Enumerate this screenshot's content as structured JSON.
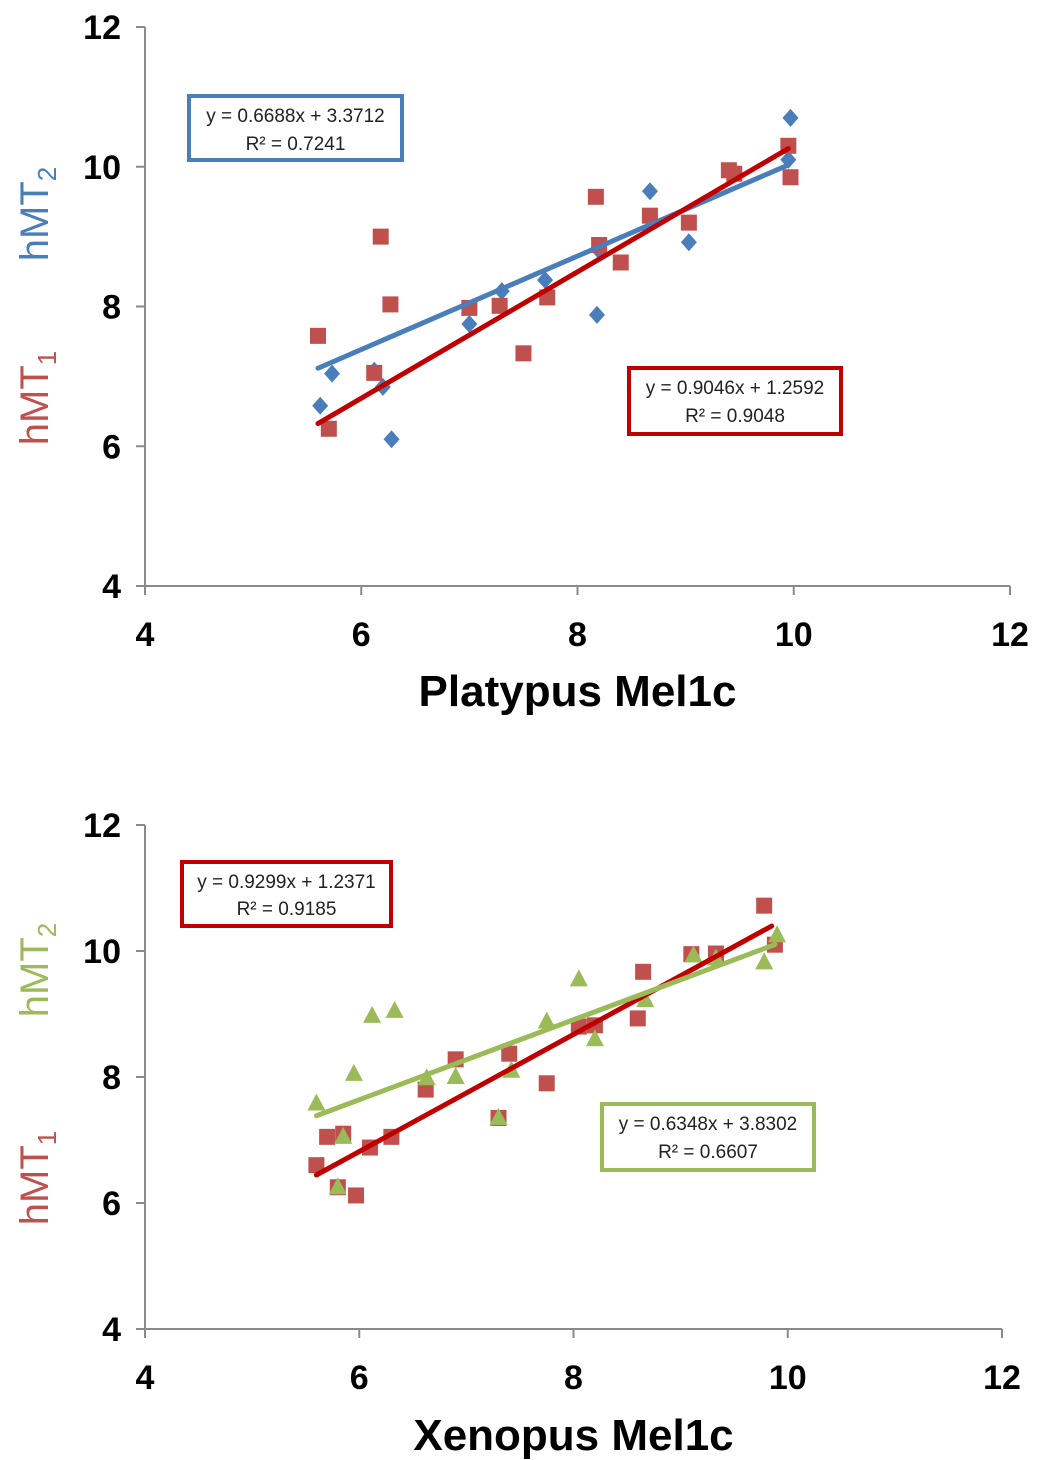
{
  "colors": {
    "blue": "#4a7ebb",
    "red_marker": "#c0504d",
    "red_dark": "#c00000",
    "green": "#9bbb59"
  },
  "chart_data": [
    {
      "type": "scatter",
      "xlabel": "Platypus Mel1c",
      "ylabel_top": {
        "base": "hMT",
        "sub": "2",
        "color": "#4a7ebb"
      },
      "ylabel_bottom": {
        "base": "hMT",
        "sub": "1",
        "color": "#c0504d"
      },
      "xlim": [
        4,
        12
      ],
      "ylim": [
        4,
        12
      ],
      "xticks": [
        "4",
        "6",
        "8",
        "10",
        "12"
      ],
      "yticks": [
        "4",
        "6",
        "8",
        "10",
        "12"
      ],
      "series": [
        {
          "marker": "diamond",
          "color": "#4a7ebb",
          "points": [
            [
              5.62,
              6.58
            ],
            [
              5.73,
              7.04
            ],
            [
              6.12,
              7.08
            ],
            [
              6.2,
              6.85
            ],
            [
              6.28,
              6.1
            ],
            [
              7.0,
              7.75
            ],
            [
              7.3,
              8.22
            ],
            [
              7.7,
              8.38
            ],
            [
              8.18,
              7.88
            ],
            [
              8.2,
              8.8
            ],
            [
              8.67,
              9.65
            ],
            [
              9.03,
              8.92
            ],
            [
              9.45,
              9.92
            ],
            [
              9.95,
              10.1
            ],
            [
              9.97,
              10.7
            ]
          ],
          "trend": {
            "x0": 5.6,
            "x1": 9.95,
            "equation": "y = 0.6688x + 3.3712",
            "r2": "R² = 0.7241",
            "box_color": "#4a7ebb"
          }
        },
        {
          "marker": "square",
          "color": "#c0504d",
          "points": [
            [
              5.6,
              7.58
            ],
            [
              5.7,
              6.25
            ],
            [
              6.12,
              7.05
            ],
            [
              6.18,
              9.0
            ],
            [
              6.27,
              8.03
            ],
            [
              7.0,
              7.98
            ],
            [
              7.28,
              8.01
            ],
            [
              7.5,
              7.33
            ],
            [
              7.72,
              8.13
            ],
            [
              8.17,
              9.57
            ],
            [
              8.2,
              8.88
            ],
            [
              8.4,
              8.63
            ],
            [
              8.67,
              9.3
            ],
            [
              9.03,
              9.2
            ],
            [
              9.4,
              9.95
            ],
            [
              9.45,
              9.9
            ],
            [
              9.95,
              10.3
            ],
            [
              9.97,
              9.85
            ]
          ],
          "trend": {
            "x0": 5.6,
            "x1": 9.95,
            "equation": "y = 0.9046x + 1.2592",
            "r2": "R² = 0.9048",
            "box_color": "#c00000"
          }
        }
      ]
    },
    {
      "type": "scatter",
      "xlabel": "Xenopus Mel1c",
      "ylabel_top": {
        "base": "hMT",
        "sub": "2",
        "color": "#9bbb59"
      },
      "ylabel_bottom": {
        "base": "hMT",
        "sub": "1",
        "color": "#c0504d"
      },
      "xlim": [
        4,
        12
      ],
      "ylim": [
        4,
        12
      ],
      "xticks": [
        "4",
        "6",
        "8",
        "10",
        "12"
      ],
      "yticks": [
        "4",
        "6",
        "8",
        "10",
        "12"
      ],
      "series": [
        {
          "marker": "square",
          "color": "#c0504d",
          "points": [
            [
              5.6,
              6.6
            ],
            [
              5.7,
              7.05
            ],
            [
              5.8,
              6.25
            ],
            [
              5.85,
              7.1
            ],
            [
              5.97,
              6.12
            ],
            [
              6.1,
              6.88
            ],
            [
              6.3,
              7.05
            ],
            [
              6.62,
              7.8
            ],
            [
              6.9,
              8.28
            ],
            [
              7.3,
              7.35
            ],
            [
              7.4,
              8.37
            ],
            [
              7.75,
              7.9
            ],
            [
              8.05,
              8.8
            ],
            [
              8.2,
              8.82
            ],
            [
              8.6,
              8.93
            ],
            [
              8.65,
              9.67
            ],
            [
              9.1,
              9.95
            ],
            [
              9.33,
              9.96
            ],
            [
              9.78,
              10.72
            ],
            [
              9.88,
              10.1
            ]
          ],
          "trend": {
            "x0": 5.6,
            "x1": 9.85,
            "equation": "y = 0.9299x + 1.2371",
            "r2": "R² = 0.9185",
            "box_color": "#c00000"
          }
        },
        {
          "marker": "triangle",
          "color": "#9bbb59",
          "points": [
            [
              5.6,
              7.58
            ],
            [
              5.8,
              6.25
            ],
            [
              5.85,
              7.05
            ],
            [
              5.95,
              8.05
            ],
            [
              6.12,
              8.97
            ],
            [
              6.33,
              9.05
            ],
            [
              6.63,
              7.98
            ],
            [
              6.9,
              8.0
            ],
            [
              7.3,
              7.35
            ],
            [
              7.42,
              8.1
            ],
            [
              7.75,
              8.88
            ],
            [
              8.05,
              9.55
            ],
            [
              8.2,
              8.6
            ],
            [
              8.67,
              9.22
            ],
            [
              9.12,
              9.93
            ],
            [
              9.33,
              9.88
            ],
            [
              9.78,
              9.82
            ],
            [
              9.9,
              10.25
            ]
          ],
          "trend": {
            "x0": 5.6,
            "x1": 9.88,
            "equation": "y = 0.6348x + 3.8302",
            "r2": "R² = 0.6607",
            "box_color": "#9bbb59"
          }
        }
      ]
    }
  ]
}
